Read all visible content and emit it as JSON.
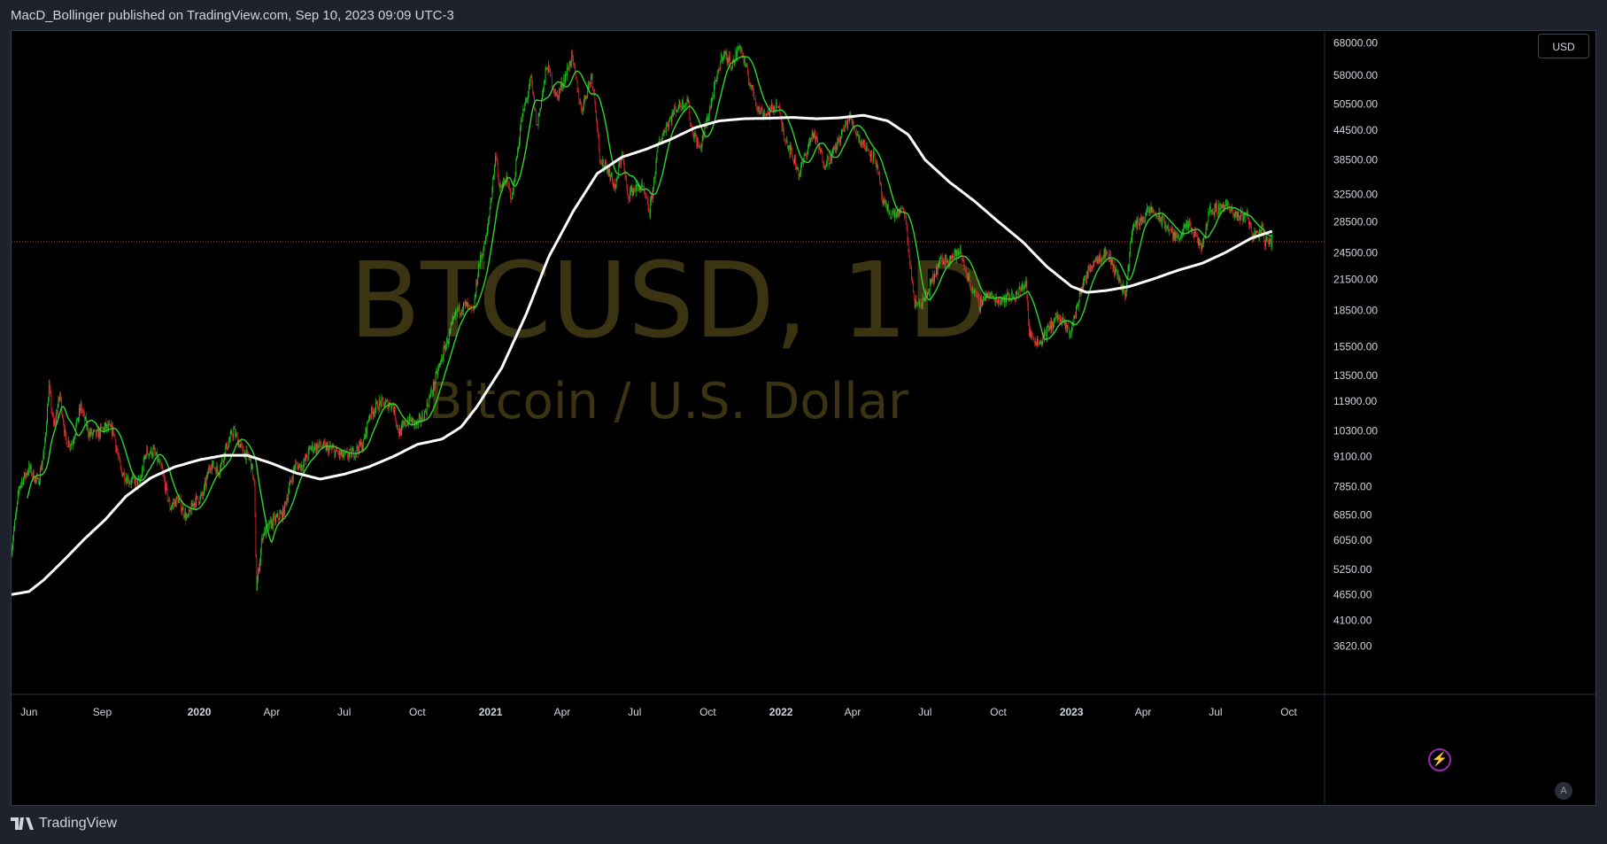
{
  "header": {
    "text": "MacD_Bollinger published on TradingView.com, Sep 10, 2023 09:09 UTC-3"
  },
  "currency": "USD",
  "auto_label": "A",
  "footer": {
    "logo_text": "TradingView"
  },
  "watermark": {
    "symbol": "BTCUSD, 1D",
    "description": "Bitcoin / U.S. Dollar"
  },
  "colors": {
    "background": "#000000",
    "panel": "#1e222d",
    "up": "#26d926",
    "down": "#e8262b",
    "fast_ma": "#2ed62e",
    "slow_ma": "#ffffff",
    "price_line": "#c13a14",
    "watermark": "#3a3413",
    "text": "#d1d4dc"
  },
  "chart_data": {
    "type": "line",
    "symbol": "BTCUSD",
    "interval": "1D",
    "y_scale": "log",
    "ylim": [
      3300,
      72000
    ],
    "xlim": [
      "2019-05-10",
      "2023-11-15"
    ],
    "y_ticks": [
      68000,
      58000,
      50500,
      44500,
      38500,
      32500,
      28500,
      24500,
      21500,
      18500,
      15500,
      13500,
      11900,
      10300,
      9100,
      7850,
      6850,
      6050,
      5250,
      4650,
      4100,
      3620
    ],
    "x_ticks": [
      {
        "label": "Jun",
        "date": "2019-06-01",
        "bold": false
      },
      {
        "label": "Sep",
        "date": "2019-09-01",
        "bold": false
      },
      {
        "label": "2020",
        "date": "2020-01-01",
        "bold": true
      },
      {
        "label": "Apr",
        "date": "2020-04-01",
        "bold": false
      },
      {
        "label": "Jul",
        "date": "2020-07-01",
        "bold": false
      },
      {
        "label": "Oct",
        "date": "2020-10-01",
        "bold": false
      },
      {
        "label": "2021",
        "date": "2021-01-01",
        "bold": true
      },
      {
        "label": "Apr",
        "date": "2021-04-01",
        "bold": false
      },
      {
        "label": "Jul",
        "date": "2021-07-01",
        "bold": false
      },
      {
        "label": "Oct",
        "date": "2021-10-01",
        "bold": false
      },
      {
        "label": "2022",
        "date": "2022-01-01",
        "bold": true
      },
      {
        "label": "Apr",
        "date": "2022-04-01",
        "bold": false
      },
      {
        "label": "Jul",
        "date": "2022-07-01",
        "bold": false
      },
      {
        "label": "Oct",
        "date": "2022-10-01",
        "bold": false
      },
      {
        "label": "2023",
        "date": "2023-01-01",
        "bold": true
      },
      {
        "label": "Apr",
        "date": "2023-04-01",
        "bold": false
      },
      {
        "label": "Jul",
        "date": "2023-07-01",
        "bold": false
      },
      {
        "label": "Oct",
        "date": "2023-10-01",
        "bold": false
      }
    ],
    "current_price": 25850,
    "price_series": [
      [
        "2019-05-10",
        5800
      ],
      [
        "2019-05-20",
        7900
      ],
      [
        "2019-06-01",
        8600
      ],
      [
        "2019-06-12",
        8000
      ],
      [
        "2019-06-20",
        9300
      ],
      [
        "2019-06-26",
        12800
      ],
      [
        "2019-07-02",
        10500
      ],
      [
        "2019-07-10",
        12300
      ],
      [
        "2019-07-17",
        9800
      ],
      [
        "2019-07-25",
        9700
      ],
      [
        "2019-08-05",
        11600
      ],
      [
        "2019-08-15",
        10200
      ],
      [
        "2019-08-25",
        10100
      ],
      [
        "2019-09-05",
        10500
      ],
      [
        "2019-09-15",
        10300
      ],
      [
        "2019-09-24",
        8500
      ],
      [
        "2019-10-05",
        8100
      ],
      [
        "2019-10-18",
        8000
      ],
      [
        "2019-10-26",
        9300
      ],
      [
        "2019-11-05",
        9300
      ],
      [
        "2019-11-15",
        8500
      ],
      [
        "2019-11-25",
        7100
      ],
      [
        "2019-12-05",
        7400
      ],
      [
        "2019-12-17",
        6700
      ],
      [
        "2019-12-25",
        7300
      ],
      [
        "2020-01-05",
        7500
      ],
      [
        "2020-01-15",
        8800
      ],
      [
        "2020-01-25",
        8500
      ],
      [
        "2020-02-05",
        9600
      ],
      [
        "2020-02-13",
        10300
      ],
      [
        "2020-02-25",
        9300
      ],
      [
        "2020-03-05",
        9000
      ],
      [
        "2020-03-10",
        7900
      ],
      [
        "2020-03-13",
        4800
      ],
      [
        "2020-03-20",
        6200
      ],
      [
        "2020-04-01",
        6600
      ],
      [
        "2020-04-15",
        6900
      ],
      [
        "2020-04-30",
        8700
      ],
      [
        "2020-05-10",
        8700
      ],
      [
        "2020-05-20",
        9500
      ],
      [
        "2020-06-01",
        9600
      ],
      [
        "2020-06-15",
        9400
      ],
      [
        "2020-06-30",
        9100
      ],
      [
        "2020-07-10",
        9200
      ],
      [
        "2020-07-25",
        9700
      ],
      [
        "2020-08-02",
        11200
      ],
      [
        "2020-08-15",
        11800
      ],
      [
        "2020-08-31",
        11700
      ],
      [
        "2020-09-08",
        10200
      ],
      [
        "2020-09-20",
        10900
      ],
      [
        "2020-10-01",
        10600
      ],
      [
        "2020-10-10",
        11200
      ],
      [
        "2020-10-21",
        12800
      ],
      [
        "2020-11-05",
        15500
      ],
      [
        "2020-11-20",
        18500
      ],
      [
        "2020-12-01",
        19000
      ],
      [
        "2020-12-10",
        18200
      ],
      [
        "2020-12-17",
        23000
      ],
      [
        "2020-12-27",
        26500
      ],
      [
        "2021-01-08",
        40000
      ],
      [
        "2021-01-12",
        33000
      ],
      [
        "2021-01-20",
        35000
      ],
      [
        "2021-01-28",
        32000
      ],
      [
        "2021-02-08",
        46000
      ],
      [
        "2021-02-21",
        57000
      ],
      [
        "2021-02-28",
        45000
      ],
      [
        "2021-03-13",
        61000
      ],
      [
        "2021-03-25",
        52000
      ],
      [
        "2021-04-05",
        58000
      ],
      [
        "2021-04-13",
        63500
      ],
      [
        "2021-04-25",
        49000
      ],
      [
        "2021-05-08",
        58000
      ],
      [
        "2021-05-13",
        50000
      ],
      [
        "2021-05-19",
        37000
      ],
      [
        "2021-05-25",
        38000
      ],
      [
        "2021-06-07",
        33500
      ],
      [
        "2021-06-15",
        40000
      ],
      [
        "2021-06-22",
        32500
      ],
      [
        "2021-07-01",
        33500
      ],
      [
        "2021-07-10",
        33800
      ],
      [
        "2021-07-20",
        29800
      ],
      [
        "2021-07-31",
        41500
      ],
      [
        "2021-08-10",
        45500
      ],
      [
        "2021-08-22",
        49500
      ],
      [
        "2021-09-06",
        51500
      ],
      [
        "2021-09-10",
        45000
      ],
      [
        "2021-09-21",
        40500
      ],
      [
        "2021-10-01",
        47500
      ],
      [
        "2021-10-10",
        55000
      ],
      [
        "2021-10-20",
        65000
      ],
      [
        "2021-11-01",
        61000
      ],
      [
        "2021-11-10",
        67500
      ],
      [
        "2021-11-20",
        58000
      ],
      [
        "2021-12-04",
        49000
      ],
      [
        "2021-12-15",
        48000
      ],
      [
        "2021-12-27",
        50700
      ],
      [
        "2022-01-05",
        43500
      ],
      [
        "2022-01-24",
        36000
      ],
      [
        "2022-02-10",
        44000
      ],
      [
        "2022-02-24",
        38000
      ],
      [
        "2022-03-05",
        39000
      ],
      [
        "2022-03-28",
        47500
      ],
      [
        "2022-04-10",
        42500
      ],
      [
        "2022-04-30",
        38500
      ],
      [
        "2022-05-09",
        31000
      ],
      [
        "2022-05-20",
        29500
      ],
      [
        "2022-06-05",
        30000
      ],
      [
        "2022-06-13",
        22500
      ],
      [
        "2022-06-18",
        19000
      ],
      [
        "2022-07-01",
        19500
      ],
      [
        "2022-07-20",
        23500
      ],
      [
        "2022-08-14",
        24500
      ],
      [
        "2022-08-25",
        21500
      ],
      [
        "2022-09-07",
        19000
      ],
      [
        "2022-09-15",
        20000
      ],
      [
        "2022-10-01",
        19500
      ],
      [
        "2022-10-25",
        20000
      ],
      [
        "2022-11-05",
        21300
      ],
      [
        "2022-11-09",
        16500
      ],
      [
        "2022-11-21",
        15800
      ],
      [
        "2022-12-14",
        18000
      ],
      [
        "2022-12-31",
        16600
      ],
      [
        "2023-01-14",
        20800
      ],
      [
        "2023-01-29",
        23700
      ],
      [
        "2023-02-15",
        24500
      ],
      [
        "2023-03-10",
        20000
      ],
      [
        "2023-03-18",
        27500
      ],
      [
        "2023-04-11",
        30200
      ],
      [
        "2023-04-26",
        28500
      ],
      [
        "2023-05-12",
        26300
      ],
      [
        "2023-05-28",
        28000
      ],
      [
        "2023-06-15",
        25000
      ],
      [
        "2023-06-22",
        30000
      ],
      [
        "2023-07-06",
        30400
      ],
      [
        "2023-07-13",
        31200
      ],
      [
        "2023-07-25",
        29200
      ],
      [
        "2023-08-10",
        29500
      ],
      [
        "2023-08-17",
        26500
      ],
      [
        "2023-08-29",
        27500
      ],
      [
        "2023-09-01",
        25900
      ],
      [
        "2023-09-10",
        25850
      ]
    ],
    "slow_ma_series": [
      [
        "2019-05-10",
        4650
      ],
      [
        "2019-06-01",
        4720
      ],
      [
        "2019-06-20",
        5000
      ],
      [
        "2019-07-15",
        5500
      ],
      [
        "2019-08-10",
        6100
      ],
      [
        "2019-09-05",
        6700
      ],
      [
        "2019-10-01",
        7500
      ],
      [
        "2019-11-01",
        8200
      ],
      [
        "2019-12-01",
        8650
      ],
      [
        "2020-01-01",
        8950
      ],
      [
        "2020-02-01",
        9150
      ],
      [
        "2020-03-01",
        9150
      ],
      [
        "2020-04-01",
        8800
      ],
      [
        "2020-05-01",
        8400
      ],
      [
        "2020-06-01",
        8150
      ],
      [
        "2020-07-01",
        8350
      ],
      [
        "2020-08-01",
        8650
      ],
      [
        "2020-09-01",
        9100
      ],
      [
        "2020-10-01",
        9650
      ],
      [
        "2020-11-01",
        9900
      ],
      [
        "2020-11-25",
        10500
      ],
      [
        "2020-12-15",
        11600
      ],
      [
        "2021-01-15",
        14000
      ],
      [
        "2021-02-15",
        18200
      ],
      [
        "2021-03-15",
        24000
      ],
      [
        "2021-04-15",
        30000
      ],
      [
        "2021-05-15",
        36000
      ],
      [
        "2021-06-15",
        39000
      ],
      [
        "2021-07-15",
        40500
      ],
      [
        "2021-08-15",
        42500
      ],
      [
        "2021-09-15",
        45000
      ],
      [
        "2021-10-15",
        46500
      ],
      [
        "2021-11-15",
        47000
      ],
      [
        "2021-12-15",
        47100
      ],
      [
        "2022-01-15",
        47300
      ],
      [
        "2022-02-15",
        47000
      ],
      [
        "2022-03-15",
        47200
      ],
      [
        "2022-04-15",
        47800
      ],
      [
        "2022-05-15",
        46500
      ],
      [
        "2022-06-10",
        43500
      ],
      [
        "2022-07-01",
        38500
      ],
      [
        "2022-08-01",
        34500
      ],
      [
        "2022-09-01",
        31500
      ],
      [
        "2022-10-01",
        28500
      ],
      [
        "2022-11-01",
        25800
      ],
      [
        "2022-12-01",
        22900
      ],
      [
        "2023-01-01",
        20800
      ],
      [
        "2023-01-20",
        20200
      ],
      [
        "2023-02-15",
        20400
      ],
      [
        "2023-03-15",
        20800
      ],
      [
        "2023-04-15",
        21600
      ],
      [
        "2023-05-15",
        22500
      ],
      [
        "2023-06-15",
        23300
      ],
      [
        "2023-07-15",
        24600
      ],
      [
        "2023-08-15",
        26300
      ],
      [
        "2023-09-10",
        27200
      ]
    ]
  }
}
